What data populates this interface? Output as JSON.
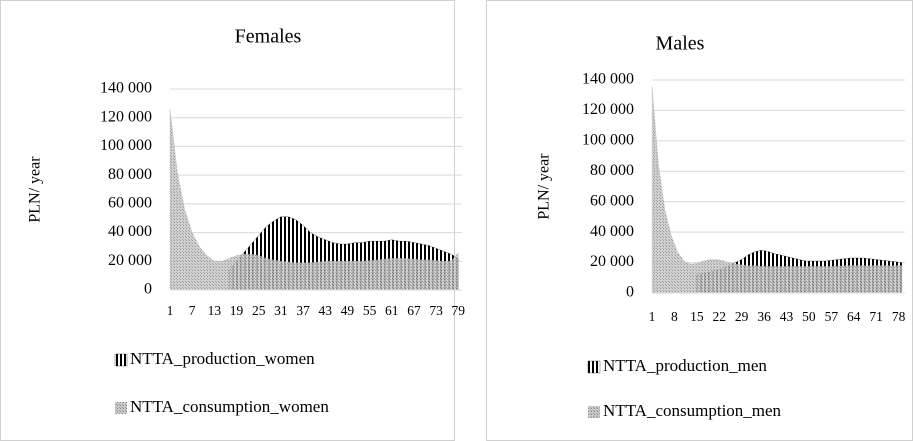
{
  "chart_data": [
    {
      "type": "area",
      "title": "Females",
      "y_label": "PLN/ year",
      "x": [
        1,
        3,
        5,
        7,
        9,
        11,
        13,
        15,
        17,
        19,
        21,
        23,
        25,
        27,
        29,
        31,
        33,
        35,
        37,
        39,
        41,
        43,
        45,
        47,
        49,
        51,
        53,
        55,
        57,
        59,
        61,
        63,
        65,
        67,
        69,
        71,
        73,
        75,
        77,
        79
      ],
      "xlim": [
        1,
        80
      ],
      "xticks": [
        1,
        7,
        13,
        19,
        25,
        31,
        37,
        43,
        49,
        55,
        61,
        67,
        73,
        79
      ],
      "ylim": [
        0,
        140000
      ],
      "yticks": [
        0,
        {
          "value": 20000,
          "label": "20 000"
        },
        {
          "value": 40000,
          "label": "40 000"
        },
        {
          "value": 60000,
          "label": "60 000"
        },
        {
          "value": 80000,
          "label": "80 000"
        },
        {
          "value": 100000,
          "label": "100 000"
        },
        {
          "value": 120000,
          "label": "120 000"
        },
        {
          "value": 140000,
          "label": "140 000"
        }
      ],
      "grid": true,
      "series": [
        {
          "name": "NTTA_production_women",
          "color": "#000000",
          "pattern": "vertical-stripes",
          "values": [
            null,
            null,
            null,
            null,
            null,
            null,
            null,
            null,
            14000,
            20000,
            26000,
            32000,
            38000,
            44000,
            48000,
            51000,
            51000,
            49000,
            45000,
            40000,
            37000,
            35000,
            33000,
            32000,
            32000,
            33000,
            33000,
            34000,
            34000,
            34000,
            35000,
            34000,
            34000,
            33000,
            32000,
            31000,
            29000,
            27000,
            25000,
            22000
          ]
        },
        {
          "name": "NTTA_consumption_women",
          "color": "#b0b0b0",
          "pattern": "crosshatch",
          "values": [
            126000,
            82000,
            56000,
            40000,
            30000,
            24000,
            20000,
            20000,
            22000,
            24000,
            25000,
            25000,
            24000,
            22000,
            21000,
            20000,
            19500,
            19000,
            19000,
            19000,
            19500,
            20000,
            20000,
            20000,
            20000,
            20000,
            20000,
            20500,
            21000,
            21500,
            22000,
            22000,
            22000,
            21500,
            21000,
            21000,
            20500,
            20000,
            20000,
            26000
          ]
        }
      ]
    },
    {
      "type": "area",
      "title": "Males",
      "y_label": "PLN/ year",
      "x": [
        1,
        3,
        5,
        7,
        9,
        11,
        13,
        15,
        17,
        19,
        21,
        23,
        25,
        27,
        29,
        31,
        33,
        35,
        37,
        39,
        41,
        43,
        45,
        47,
        49,
        51,
        53,
        55,
        57,
        59,
        61,
        63,
        65,
        67,
        69,
        71,
        73,
        75,
        77,
        79
      ],
      "xlim": [
        1,
        80
      ],
      "xticks": [
        1,
        8,
        15,
        22,
        29,
        36,
        43,
        50,
        57,
        64,
        71,
        78
      ],
      "ylim": [
        0,
        140000
      ],
      "yticks": [
        0,
        {
          "value": 20000,
          "label": "20 000"
        },
        {
          "value": 40000,
          "label": "40 000"
        },
        {
          "value": 60000,
          "label": "60 000"
        },
        {
          "value": 80000,
          "label": "80 000"
        },
        {
          "value": 100000,
          "label": "100 000"
        },
        {
          "value": 120000,
          "label": "120 000"
        },
        {
          "value": 140000,
          "label": "140 000"
        }
      ],
      "grid": true,
      "series": [
        {
          "name": "NTTA_production_men",
          "color": "#000000",
          "pattern": "vertical-stripes",
          "values": [
            null,
            null,
            null,
            null,
            null,
            null,
            null,
            12000,
            13000,
            14000,
            15000,
            16000,
            18000,
            20000,
            22000,
            25000,
            27000,
            28000,
            27500,
            26000,
            25000,
            24000,
            23000,
            22000,
            21000,
            21000,
            21000,
            21000,
            21500,
            22000,
            22500,
            23000,
            23000,
            23000,
            22500,
            22000,
            21500,
            21000,
            20500,
            20000
          ]
        },
        {
          "name": "NTTA_consumption_men",
          "color": "#b0b0b0",
          "pattern": "crosshatch",
          "values": [
            136000,
            85000,
            55000,
            38000,
            27000,
            21000,
            19000,
            19500,
            21000,
            22000,
            22000,
            21500,
            20000,
            19000,
            18500,
            18000,
            18000,
            17500,
            17500,
            17500,
            17500,
            17500,
            17500,
            17500,
            17500,
            17500,
            17500,
            17500,
            17500,
            17500,
            18000,
            18000,
            18000,
            18000,
            18000,
            18000,
            18000,
            18000,
            18000,
            18000
          ]
        }
      ]
    }
  ]
}
